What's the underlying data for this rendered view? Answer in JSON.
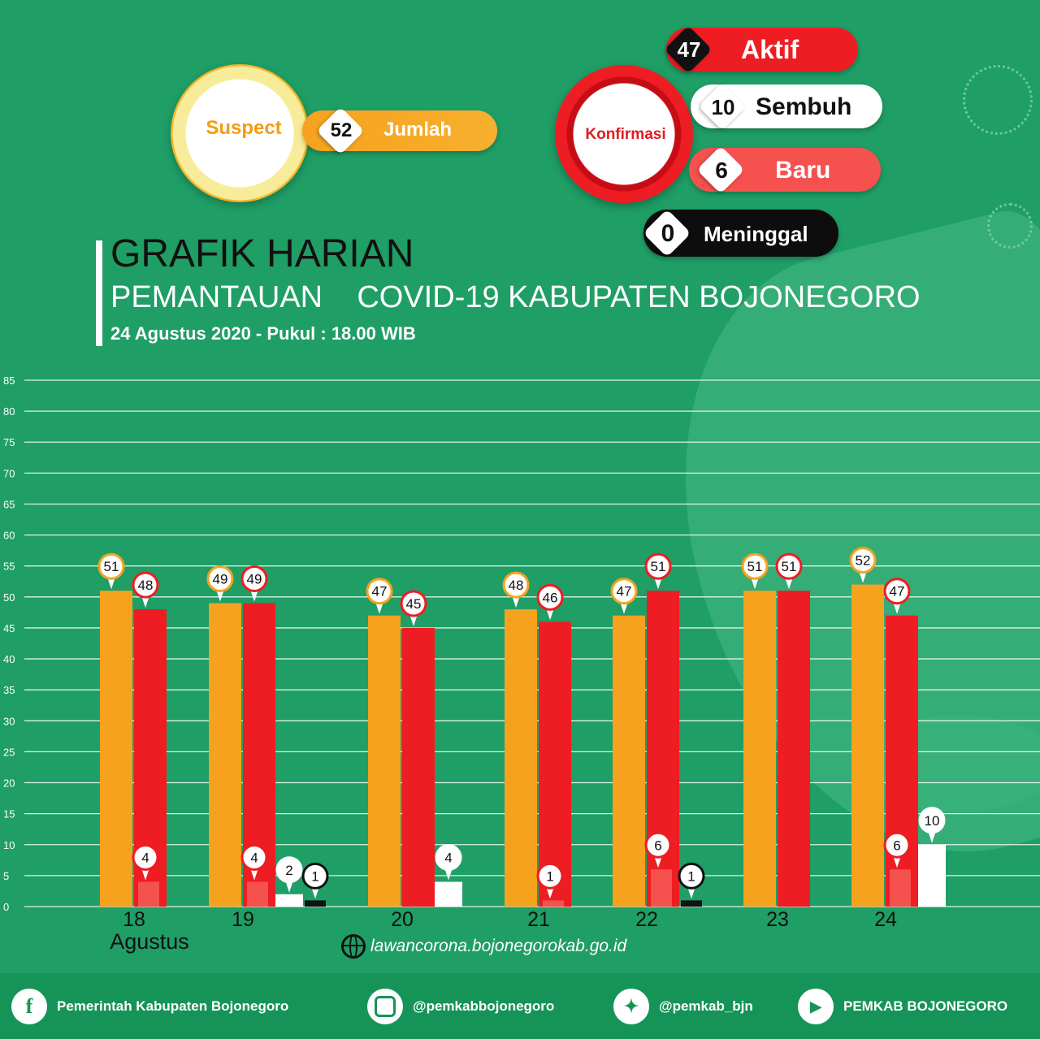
{
  "header": {
    "suspect": {
      "label": "Suspect",
      "value": "52",
      "caption": "Jumlah"
    },
    "konfirmasi": {
      "label": "Konfirmasi",
      "aktif": {
        "value": "47",
        "label": "Aktif"
      },
      "sembuh": {
        "value": "10",
        "label": "Sembuh"
      },
      "baru": {
        "value": "6",
        "label": "Baru"
      },
      "meninggal": {
        "value": "0",
        "label": "Meninggal"
      }
    }
  },
  "title": {
    "line1": "GRAFIK HARIAN",
    "line2": "PEMANTAUAN    COVID-19 KABUPATEN BOJONEGORO",
    "line3": "24 Agustus 2020 - Pukul : 18.00 WIB"
  },
  "month_label": "Agustus",
  "website": "lawancorona.bojonegorokab.go.id",
  "footer": {
    "facebook": "Pemerintah Kabupaten Bojonegoro",
    "instagram": "@pemkabbojonegoro",
    "twitter": "@pemkab_bjn",
    "youtube": "PEMKAB BOJONEGORO"
  },
  "colors": {
    "background": "#1f9e66",
    "suspect": "#f6a21e",
    "aktif": "#ee1d23",
    "baru": "#f5514f",
    "sembuh": "#ffffff",
    "meninggal": "#111111"
  },
  "chart_data": {
    "type": "bar",
    "categories": [
      "18",
      "19",
      "20",
      "21",
      "22",
      "23",
      "24"
    ],
    "series": [
      {
        "key": "suspect",
        "values": [
          51,
          49,
          47,
          48,
          47,
          51,
          52
        ]
      },
      {
        "key": "aktif",
        "values": [
          48,
          49,
          45,
          46,
          51,
          51,
          47
        ]
      },
      {
        "key": "baru",
        "values": [
          4,
          4,
          null,
          1,
          6,
          null,
          6
        ]
      },
      {
        "key": "sembuh",
        "values": [
          null,
          2,
          4,
          null,
          null,
          null,
          10
        ]
      },
      {
        "key": "meninggal",
        "values": [
          null,
          1,
          null,
          null,
          1,
          null,
          null
        ]
      }
    ],
    "ylim": [
      0,
      85
    ],
    "yticks": [
      0,
      5,
      10,
      15,
      20,
      25,
      30,
      35,
      40,
      45,
      50,
      55,
      60,
      65,
      70,
      75,
      80,
      85
    ],
    "grid": true
  }
}
